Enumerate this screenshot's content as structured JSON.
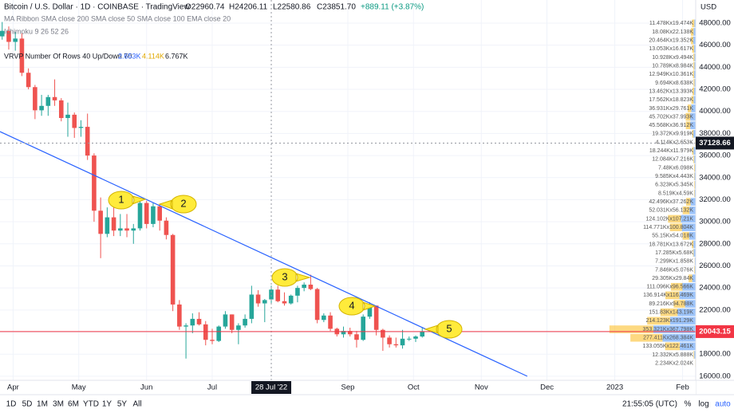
{
  "header": {
    "title": "Bitcoin / U.S. Dollar · 1D · COINBASE · TradingView",
    "ohlc": [
      "O22960.74",
      "H24206.11",
      "L22580.86",
      "C23851.70"
    ],
    "change": "+889.11 (+3.87%)"
  },
  "indicators": [
    "MA Ribbon SMA close 200 SMA close 50 SMA close 100 EMA close 20",
    "Ichimoku 9 26 52 26",
    "VRVP Number Of Rows 40 Up/Down 70"
  ],
  "vrvp_values": [
    "2.653K",
    "4.114K",
    "6.767K"
  ],
  "currency": "USD",
  "callouts": [
    "1",
    "2",
    "3",
    "4",
    "5"
  ],
  "toolbar": {
    "ranges": [
      "1D",
      "5D",
      "1M",
      "3M",
      "6M",
      "YTD",
      "1Y",
      "5Y",
      "All"
    ],
    "clock": "21:55:05 (UTC)",
    "options": [
      "%",
      "log",
      "auto"
    ]
  },
  "chart_data": {
    "type": "candlestick",
    "x": [
      "2022-03-27",
      "2022-03-30",
      "2022-04-02",
      "2022-04-05",
      "2022-04-08",
      "2022-04-11",
      "2022-04-14",
      "2022-04-17",
      "2022-04-20",
      "2022-04-23",
      "2022-04-26",
      "2022-04-29",
      "2022-05-02",
      "2022-05-05",
      "2022-05-08",
      "2022-05-11",
      "2022-05-14",
      "2022-05-17",
      "2022-05-20",
      "2022-05-23",
      "2022-05-26",
      "2022-05-29",
      "2022-06-01",
      "2022-06-04",
      "2022-06-07",
      "2022-06-10",
      "2022-06-13",
      "2022-06-16",
      "2022-06-19",
      "2022-06-22",
      "2022-06-25",
      "2022-06-28",
      "2022-07-01",
      "2022-07-04",
      "2022-07-07",
      "2022-07-10",
      "2022-07-13",
      "2022-07-16",
      "2022-07-19",
      "2022-07-22",
      "2022-07-25",
      "2022-07-28",
      "2022-07-31",
      "2022-08-03",
      "2022-08-06",
      "2022-08-09",
      "2022-08-12",
      "2022-08-15",
      "2022-08-18",
      "2022-08-21",
      "2022-08-24",
      "2022-08-27",
      "2022-08-30",
      "2022-09-02",
      "2022-09-05",
      "2022-09-08",
      "2022-09-11",
      "2022-09-14",
      "2022-09-17",
      "2022-09-20",
      "2022-09-23",
      "2022-09-26",
      "2022-09-29",
      "2022-10-02",
      "2022-10-05"
    ],
    "open": [
      46800,
      47300,
      46300,
      46600,
      43500,
      42200,
      40100,
      40500,
      41300,
      41000,
      39400,
      39700,
      38500,
      38600,
      36000,
      31000,
      28900,
      30400,
      29200,
      29400,
      29200,
      29400,
      31700,
      29800,
      31400,
      30100,
      28800,
      22500,
      20500,
      20600,
      21200,
      20700,
      19300,
      19200,
      20500,
      21600,
      20200,
      20600,
      21200,
      23400,
      22600,
      22960,
      23850,
      22800,
      22600,
      23300,
      24000,
      24300,
      23900,
      21100,
      21500,
      20300,
      19800,
      20100,
      19800,
      19300,
      21400,
      22400,
      20200,
      19500,
      18900,
      18800,
      19400,
      19400,
      19600
    ],
    "high": [
      48100,
      47700,
      47200,
      47100,
      43900,
      42400,
      41500,
      41500,
      42900,
      41200,
      40800,
      39900,
      39200,
      39800,
      36200,
      32200,
      31300,
      31500,
      30700,
      30700,
      29800,
      31900,
      31900,
      31700,
      31600,
      30400,
      28900,
      22900,
      20800,
      21700,
      21800,
      21000,
      20300,
      20600,
      21900,
      21600,
      20800,
      21600,
      24200,
      23800,
      23000,
      24206,
      24200,
      23600,
      23400,
      24200,
      24500,
      25200,
      24000,
      21700,
      21800,
      20400,
      20500,
      20400,
      20100,
      21600,
      22700,
      22400,
      20300,
      19700,
      19500,
      20200,
      19600,
      19700,
      20450
    ],
    "low": [
      46500,
      45600,
      45500,
      43200,
      42000,
      39300,
      39600,
      39600,
      40500,
      39100,
      37700,
      37600,
      37700,
      35600,
      30000,
      26700,
      28600,
      28700,
      28700,
      28600,
      28000,
      29200,
      29400,
      29500,
      29200,
      28400,
      21900,
      20200,
      17600,
      19900,
      20600,
      18800,
      18900,
      19100,
      20300,
      19900,
      18900,
      20400,
      20800,
      22300,
      20900,
      22580,
      22700,
      22400,
      22500,
      22700,
      23700,
      23800,
      20800,
      20900,
      20100,
      19600,
      19500,
      19600,
      18600,
      19200,
      21200,
      19700,
      18300,
      18600,
      18600,
      18500,
      19200,
      19100,
      19500
    ],
    "close": [
      47300,
      46300,
      46600,
      43500,
      42200,
      40100,
      40500,
      41300,
      41000,
      39400,
      39700,
      38500,
      38600,
      36000,
      31000,
      28900,
      30400,
      29200,
      29400,
      29200,
      29400,
      31700,
      29800,
      31400,
      30100,
      28800,
      22500,
      20500,
      20600,
      21200,
      20700,
      19300,
      19200,
      20500,
      21600,
      20200,
      20600,
      21200,
      23400,
      22600,
      22900,
      23851,
      22800,
      22600,
      23300,
      24000,
      24300,
      23900,
      21100,
      21500,
      20300,
      19800,
      20100,
      19800,
      19300,
      21400,
      22400,
      20200,
      19500,
      18900,
      18800,
      19400,
      19400,
      19600,
      20043.15
    ],
    "colors": {
      "up": "#26a69a",
      "down": "#ef5350",
      "trendline": "#2962ff",
      "last_price": "#f23645"
    },
    "xlim": [
      "2022-03-26",
      "2023-02-07"
    ],
    "xticks": [
      {
        "value": "2022-04-01",
        "label": "Apr"
      },
      {
        "value": "2022-05-01",
        "label": "May"
      },
      {
        "value": "2022-06-01",
        "label": "Jun"
      },
      {
        "value": "2022-07-01",
        "label": "Jul"
      },
      {
        "value": "2022-09-01",
        "label": "Sep"
      },
      {
        "value": "2022-10-01",
        "label": "Oct"
      },
      {
        "value": "2022-11-01",
        "label": "Nov"
      },
      {
        "value": "2022-12-01",
        "label": "Dec"
      },
      {
        "value": "2023-01-01",
        "label": "2023"
      },
      {
        "value": "2023-02-01",
        "label": "Feb"
      }
    ],
    "ylim": [
      15630,
      50095
    ],
    "yticks": [
      {
        "value": 16000,
        "label": "16000.00"
      },
      {
        "value": 18000,
        "label": "18000.00"
      },
      {
        "value": 20000,
        "label": "20000.00"
      },
      {
        "value": 22000,
        "label": "22000.00"
      },
      {
        "value": 24000,
        "label": "24000.00"
      },
      {
        "value": 26000,
        "label": "26000.00"
      },
      {
        "value": 28000,
        "label": "28000.00"
      },
      {
        "value": 30000,
        "label": "30000.00"
      },
      {
        "value": 32000,
        "label": "32000.00"
      },
      {
        "value": 34000,
        "label": "34000.00"
      },
      {
        "value": 36000,
        "label": "36000.00"
      },
      {
        "value": 38000,
        "label": "38000.00"
      },
      {
        "value": 40000,
        "label": "40000.00"
      },
      {
        "value": 42000,
        "label": "42000.00"
      },
      {
        "value": 44000,
        "label": "44000.00"
      },
      {
        "value": 46000,
        "label": "46000.00"
      },
      {
        "value": 48000,
        "label": "48000.00"
      }
    ],
    "grid": true,
    "last_price": {
      "value": 20043.15,
      "label": "20043.15"
    },
    "crosshair": {
      "price": {
        "value": 37128.66,
        "label": "37128.66"
      },
      "date": {
        "value": "2022-07-28",
        "label": "28 Jul '22"
      }
    },
    "trendline": {
      "x": [
        "2022-03-26",
        "2022-11-22"
      ],
      "y": [
        38170,
        16000
      ]
    },
    "volume_profile": {
      "colors": {
        "up": "#5b9cf6",
        "down": "#fbc02d"
      },
      "rows": [
        {
          "label": "11.478Kx19.474K",
          "up": 11.478,
          "down": 19.474
        },
        {
          "label": "18.08Kx22.138K",
          "up": 18.08,
          "down": 22.138
        },
        {
          "label": "20.464Kx19.352K",
          "up": 20.464,
          "down": 19.352
        },
        {
          "label": "13.053Kx16.617K",
          "up": 13.053,
          "down": 16.617
        },
        {
          "label": "10.928Kx9.494K",
          "up": 10.928,
          "down": 9.494
        },
        {
          "label": "10.789Kx8.984K",
          "up": 10.789,
          "down": 8.984
        },
        {
          "label": "12.949Kx10.361K",
          "up": 12.949,
          "down": 10.361
        },
        {
          "label": "9.694Kx8.638K",
          "up": 9.694,
          "down": 8.638
        },
        {
          "label": "13.462Kx13.393K",
          "up": 13.462,
          "down": 13.393
        },
        {
          "label": "17.562Kx18.823K",
          "up": 17.562,
          "down": 18.823
        },
        {
          "label": "36.931Kx29.761K",
          "up": 36.931,
          "down": 29.761
        },
        {
          "label": "45.702Kx37.993K",
          "up": 45.702,
          "down": 37.993
        },
        {
          "label": "45.568Kx36.912K",
          "up": 45.568,
          "down": 36.912
        },
        {
          "label": "19.372Kx9.919K",
          "up": 19.372,
          "down": 9.919
        },
        {
          "label": "4.114Kx2.653K",
          "up": 4.114,
          "down": 2.653
        },
        {
          "label": "18.244Kx11.979K",
          "up": 18.244,
          "down": 11.979
        },
        {
          "label": "12.084Kx7.216K",
          "up": 12.084,
          "down": 7.216
        },
        {
          "label": "7.48Kx6.098K",
          "up": 7.48,
          "down": 6.098
        },
        {
          "label": "9.585Kx4.443K",
          "up": 9.585,
          "down": 4.443
        },
        {
          "label": "6.323Kx5.345K",
          "up": 6.323,
          "down": 5.345
        },
        {
          "label": "8.519Kx4.59K",
          "up": 8.519,
          "down": 4.59
        },
        {
          "label": "42.496Kx37.262K",
          "up": 42.496,
          "down": 37.262
        },
        {
          "label": "52.031Kx56.132K",
          "up": 52.031,
          "down": 56.132
        },
        {
          "label": "124.102Kx107.21K",
          "up": 124.102,
          "down": 107.21
        },
        {
          "label": "114.771Kx100.804K",
          "up": 114.771,
          "down": 100.804
        },
        {
          "label": "55.15Kx54.018K",
          "up": 55.15,
          "down": 54.018
        },
        {
          "label": "18.781Kx13.672K",
          "up": 18.781,
          "down": 13.672
        },
        {
          "label": "17.285Kx5.68K",
          "up": 17.285,
          "down": 5.68
        },
        {
          "label": "7.299Kx1.858K",
          "up": 7.299,
          "down": 1.858
        },
        {
          "label": "7.846Kx5.076K",
          "up": 7.846,
          "down": 5.076
        },
        {
          "label": "29.305Kx29.84K",
          "up": 29.305,
          "down": 29.84
        },
        {
          "label": "111.096Kx96.566K",
          "up": 111.096,
          "down": 96.566
        },
        {
          "label": "136.914Kx116.469K",
          "up": 136.914,
          "down": 116.469
        },
        {
          "label": "89.216Kx94.788K",
          "up": 89.216,
          "down": 94.788
        },
        {
          "label": "151.83Kx143.19K",
          "up": 151.83,
          "down": 143.19
        },
        {
          "label": "214.123Kx191.29K",
          "up": 214.123,
          "down": 191.29
        },
        {
          "label": "353.321Kx367.798K",
          "up": 353.321,
          "down": 367.798
        },
        {
          "label": "277.411Kx268.384K",
          "up": 277.411,
          "down": 268.384
        },
        {
          "label": "133.055Kx122.461K",
          "up": 133.055,
          "down": 122.461
        },
        {
          "label": "12.332Kx5.888K",
          "up": 12.332,
          "down": 5.888
        },
        {
          "label": "2.234Kx2.024K",
          "up": 2.234,
          "down": 2.024
        }
      ]
    }
  }
}
